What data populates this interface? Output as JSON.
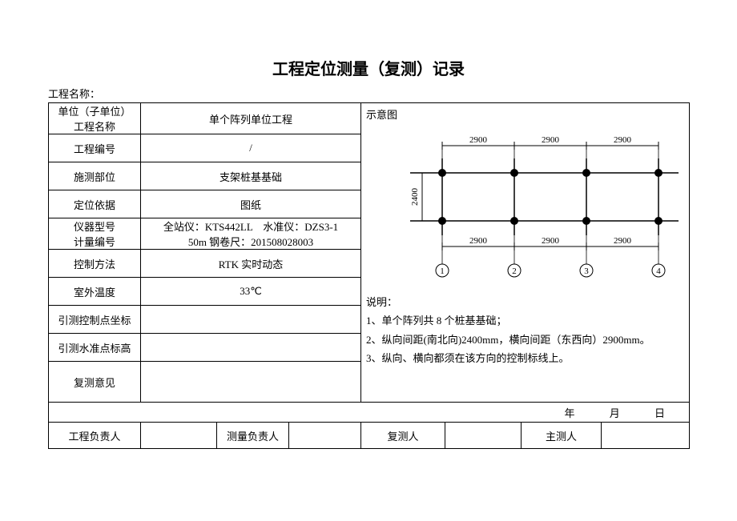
{
  "title": "工程定位测量（复测）记录",
  "project_name_label": "工程名称：",
  "rows": {
    "r1_label1": "单位（子单位）",
    "r1_label2": "工程名称",
    "r1_val": "单个阵列单位工程",
    "r2_label": "工程编号",
    "r2_val": "/",
    "r3_label": "施测部位",
    "r3_val": "支架桩基基础",
    "r4_label": "定位依据",
    "r4_val": "图纸",
    "r5_label1": "仪器型号",
    "r5_label2": "计量编号",
    "r5_val1": "全站仪：KTS442LL　水准仪：DZS3-1",
    "r5_val2": "50m 钢卷尺：201508028003",
    "r6_label": "控制方法",
    "r6_val": "RTK 实时动态",
    "r7_label": "室外温度",
    "r7_val": "33℃",
    "r8_label": "引测控制点坐标",
    "r8_val": "",
    "r9_label": "引测水准点标高",
    "r9_val": "",
    "r10_label": "复测意见",
    "r10_val": ""
  },
  "diagram_title": "示意图",
  "diagram": {
    "top_dims": [
      "2900",
      "2900",
      "2900"
    ],
    "bottom_dims": [
      "2900",
      "2900",
      "2900"
    ],
    "left_dim": "2400",
    "col_labels": [
      "1",
      "2",
      "3",
      "4"
    ],
    "node_fill": "#000000",
    "line_color": "#000000",
    "bg": "#ffffff"
  },
  "desc_title": "说明：",
  "desc_lines": [
    "1、单个阵列共 8 个桩基基础；",
    "2、纵向间距(南北向)2400mm，横向间距（东西向）2900mm。",
    "3、纵向、横向都须在该方向的控制标线上。"
  ],
  "date_parts": {
    "y": "年",
    "m": "月",
    "d": "日"
  },
  "sign": {
    "a": "工程负责人",
    "b": "测量负责人",
    "c": "复测人",
    "d": "主测人"
  }
}
